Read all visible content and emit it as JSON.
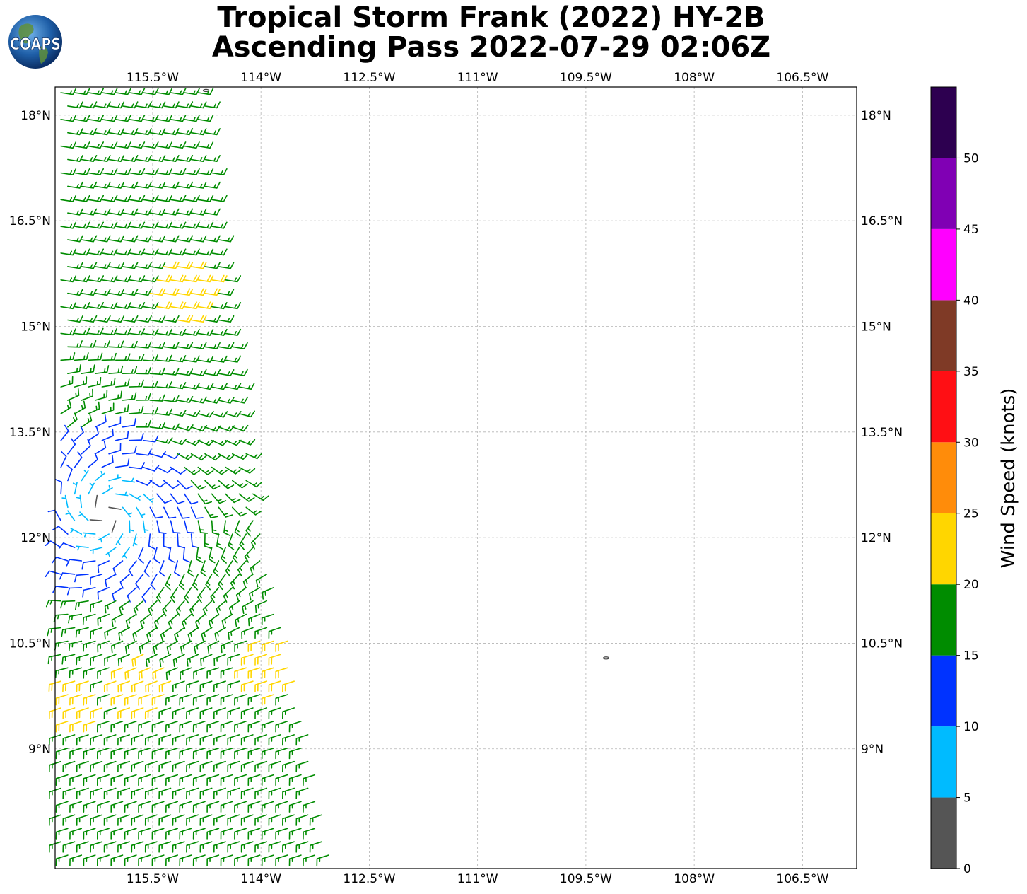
{
  "header": {
    "title_line1": "Tropical Storm Frank (2022) HY-2B",
    "title_line2": "Ascending Pass 2022-07-29 02:06Z",
    "logo_text": "COAPS"
  },
  "map": {
    "lon_ticks": [
      "115.5°W",
      "114°W",
      "112.5°W",
      "111°W",
      "109.5°W",
      "108°W",
      "106.5°W"
    ],
    "lat_ticks": [
      "18°N",
      "16.5°N",
      "15°N",
      "13.5°N",
      "12°N",
      "10.5°N",
      "9°N"
    ],
    "lon_values": [
      -115.5,
      -114,
      -112.5,
      -111,
      -109.5,
      -108,
      -106.5
    ],
    "lat_values": [
      18,
      16.5,
      15,
      13.5,
      12,
      10.5,
      9
    ],
    "extent": {
      "lon_min": -116.85,
      "lon_max": -105.75,
      "lat_min": 7.3,
      "lat_max": 18.4
    },
    "grid": true,
    "storm_center": {
      "lon": -116.15,
      "lat": 12.35
    },
    "islands": [
      {
        "lon": -114.76,
        "lat": 18.35
      },
      {
        "lon": -109.22,
        "lat": 10.29
      }
    ]
  },
  "colorbar": {
    "label": "Wind Speed (knots)",
    "ticks": [
      "0",
      "5",
      "10",
      "15",
      "20",
      "25",
      "30",
      "35",
      "40",
      "45",
      "50"
    ],
    "bins": [
      {
        "min": 0,
        "max": 5,
        "color": "#555555"
      },
      {
        "min": 5,
        "max": 10,
        "color": "#00bbff"
      },
      {
        "min": 10,
        "max": 15,
        "color": "#0033ff"
      },
      {
        "min": 15,
        "max": 20,
        "color": "#008c00"
      },
      {
        "min": 20,
        "max": 25,
        "color": "#ffd600"
      },
      {
        "min": 25,
        "max": 30,
        "color": "#ff8c0a"
      },
      {
        "min": 30,
        "max": 35,
        "color": "#ff0f14"
      },
      {
        "min": 35,
        "max": 40,
        "color": "#7f3a26"
      },
      {
        "min": 40,
        "max": 45,
        "color": "#ff00ff"
      },
      {
        "min": 45,
        "max": 50,
        "color": "#8000b4"
      },
      {
        "min": 50,
        "max": 55,
        "color": "#2d0050"
      }
    ]
  },
  "wind_field": {
    "center": {
      "lon": -116.15,
      "lat": 12.35
    },
    "swath_east_edge": [
      {
        "lat": 18.4,
        "lon": -114.75
      },
      {
        "lat": 16.5,
        "lon": -114.6
      },
      {
        "lat": 15.0,
        "lon": -114.4
      },
      {
        "lat": 13.5,
        "lon": -114.2
      },
      {
        "lat": 12.0,
        "lon": -114.0
      },
      {
        "lat": 10.5,
        "lon": -113.6
      },
      {
        "lat": 9.0,
        "lon": -113.3
      },
      {
        "lat": 7.3,
        "lon": -112.95
      }
    ],
    "yellow_patches": [
      {
        "lon": -115.1,
        "lat": 15.5
      },
      {
        "lon": -113.8,
        "lat": 10.2
      },
      {
        "lon": -115.6,
        "lat": 9.9
      },
      {
        "lon": -116.6,
        "lat": 9.7
      }
    ]
  }
}
